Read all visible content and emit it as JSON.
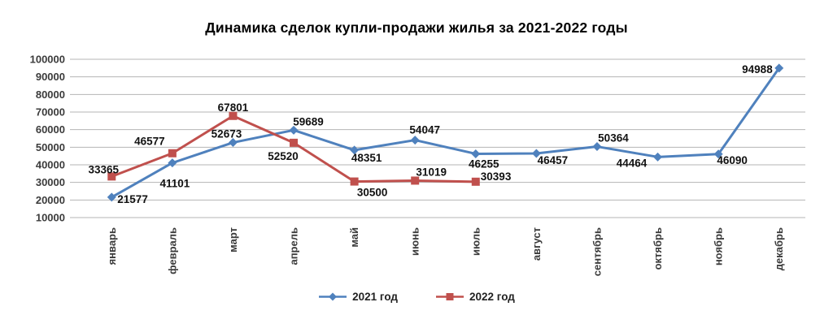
{
  "title": "Динамика сделок купли-продажи жилья за 2021-2022 годы",
  "legend": {
    "items": [
      "2021 год",
      "2022 год"
    ]
  },
  "chart_data": {
    "type": "line",
    "title": "Динамика сделок купли-продажи жилья за 2021-2022 годы",
    "categories": [
      "январь",
      "февраль",
      "март",
      "апрель",
      "май",
      "июнь",
      "июль",
      "август",
      "сентябрь",
      "октябрь",
      "ноябрь",
      "декабрь"
    ],
    "ylim": [
      10000,
      100000
    ],
    "ytick_step": 10000,
    "grid": "horizontal",
    "legend_position": "bottom",
    "gridline_color": "#b4b4b4",
    "axis_text_color": "#3b3b3b",
    "data_label_color": "#111111",
    "series": [
      {
        "name": "2021 год",
        "color": "#4F81BD",
        "marker": "diamond",
        "values": [
          21577,
          41101,
          52673,
          59689,
          48351,
          54047,
          46255,
          46457,
          50364,
          44464,
          46090,
          94988
        ],
        "label_offsets": [
          [
            7,
            7,
            "start"
          ],
          [
            3,
            30,
            "middle"
          ],
          [
            -8,
            -6,
            "middle"
          ],
          [
            18,
            -6,
            "middle"
          ],
          [
            15,
            14,
            "middle"
          ],
          [
            12,
            -8,
            "middle"
          ],
          [
            10,
            17,
            "middle"
          ],
          [
            20,
            13,
            "middle"
          ],
          [
            20,
            -6,
            "middle"
          ],
          [
            -32,
            12,
            "middle"
          ],
          [
            17,
            12,
            "middle"
          ],
          [
            -8,
            6,
            "end"
          ]
        ]
      },
      {
        "name": "2022 год",
        "color": "#C0504D",
        "marker": "square",
        "values": [
          33365,
          46577,
          67801,
          52520,
          30500,
          31019,
          30393
        ],
        "label_offsets": [
          [
            -10,
            -4,
            "middle"
          ],
          [
            -28,
            -10,
            "middle"
          ],
          [
            0,
            -6,
            "middle"
          ],
          [
            -13,
            21,
            "middle"
          ],
          [
            22,
            18,
            "middle"
          ],
          [
            20,
            -6,
            "middle"
          ],
          [
            6,
            -2,
            "start"
          ]
        ]
      }
    ]
  }
}
